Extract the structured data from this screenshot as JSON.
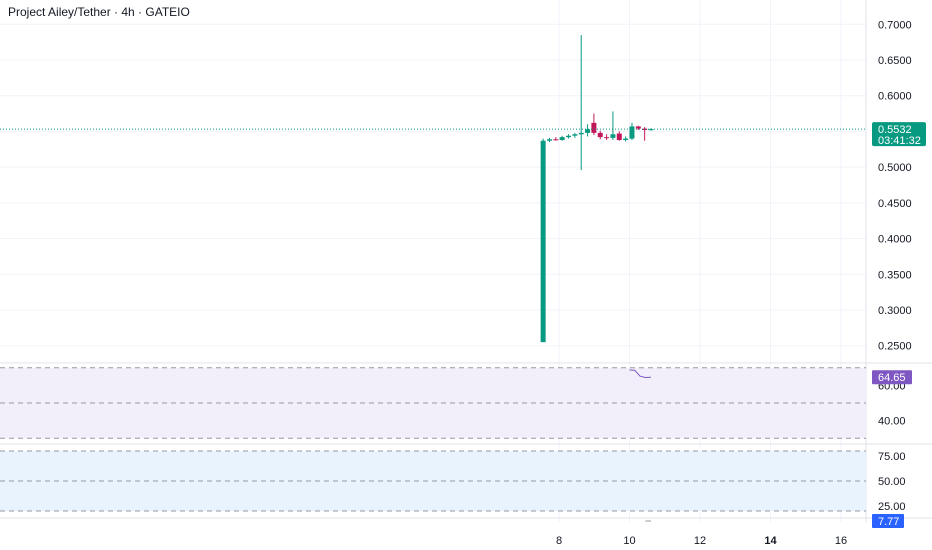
{
  "header": {
    "title": "Project Ailey/Tether · 4h · GATEIO"
  },
  "colors": {
    "up": "#089981",
    "down": "#c2185b",
    "grid": "#f0f3fa",
    "text": "#131722",
    "rsi_band": "#f3effa",
    "rsi_line": "#7e57c2",
    "stoch_band": "#e8f3fd",
    "stoch_tag": "#2962ff"
  },
  "chart_data": [
    {
      "type": "candlestick",
      "title": "Project Ailey/Tether · 4h · GATEIO",
      "ylim": [
        0.23,
        0.72
      ],
      "y_ticks": [
        "0.7000",
        "0.6500",
        "0.6000",
        "0.5500",
        "0.5000",
        "0.4500",
        "0.4000",
        "0.3500",
        "0.3000",
        "0.2500"
      ],
      "x_ticks": [
        {
          "label": "8",
          "bold": false
        },
        {
          "label": "10",
          "bold": false
        },
        {
          "label": "12",
          "bold": false
        },
        {
          "label": "14",
          "bold": true
        },
        {
          "label": "16",
          "bold": false
        }
      ],
      "last_price": {
        "value": "0.5532",
        "countdown": "03:41:32"
      },
      "candles": [
        {
          "t": 7.55,
          "o": 0.255,
          "h": 0.54,
          "l": 0.255,
          "c": 0.537
        },
        {
          "t": 7.73,
          "o": 0.537,
          "h": 0.541,
          "l": 0.535,
          "c": 0.539
        },
        {
          "t": 7.91,
          "o": 0.539,
          "h": 0.542,
          "l": 0.537,
          "c": 0.538
        },
        {
          "t": 8.09,
          "o": 0.538,
          "h": 0.544,
          "l": 0.537,
          "c": 0.542
        },
        {
          "t": 8.27,
          "o": 0.542,
          "h": 0.546,
          "l": 0.54,
          "c": 0.544
        },
        {
          "t": 8.45,
          "o": 0.544,
          "h": 0.548,
          "l": 0.541,
          "c": 0.546
        },
        {
          "t": 8.63,
          "o": 0.546,
          "h": 0.685,
          "l": 0.496,
          "c": 0.548
        },
        {
          "t": 8.81,
          "o": 0.548,
          "h": 0.56,
          "l": 0.543,
          "c": 0.553
        },
        {
          "t": 8.99,
          "o": 0.562,
          "h": 0.575,
          "l": 0.545,
          "c": 0.548
        },
        {
          "t": 9.17,
          "o": 0.548,
          "h": 0.551,
          "l": 0.539,
          "c": 0.542
        },
        {
          "t": 9.35,
          "o": 0.542,
          "h": 0.546,
          "l": 0.538,
          "c": 0.541
        },
        {
          "t": 9.53,
          "o": 0.541,
          "h": 0.578,
          "l": 0.538,
          "c": 0.546
        },
        {
          "t": 9.71,
          "o": 0.547,
          "h": 0.55,
          "l": 0.537,
          "c": 0.538
        },
        {
          "t": 9.89,
          "o": 0.538,
          "h": 0.543,
          "l": 0.536,
          "c": 0.54
        },
        {
          "t": 10.07,
          "o": 0.54,
          "h": 0.562,
          "l": 0.538,
          "c": 0.557
        },
        {
          "t": 10.25,
          "o": 0.557,
          "h": 0.558,
          "l": 0.552,
          "c": 0.554
        },
        {
          "t": 10.43,
          "o": 0.554,
          "h": 0.556,
          "l": 0.537,
          "c": 0.552
        },
        {
          "t": 10.61,
          "o": 0.552,
          "h": 0.5545,
          "l": 0.551,
          "c": 0.5532
        }
      ]
    },
    {
      "type": "line",
      "name": "RSI",
      "ylim": [
        29,
        71
      ],
      "bands": [
        70,
        50,
        30
      ],
      "y_ticks": [
        "60.00",
        "40.00"
      ],
      "current": "64.65",
      "x": [
        10.0,
        10.15,
        10.3,
        10.45,
        10.61
      ],
      "y": [
        68.8,
        68.5,
        65.2,
        64.5,
        64.65
      ]
    },
    {
      "type": "line",
      "name": "Stochastic",
      "ylim": [
        17,
        83
      ],
      "bands": [
        80,
        50,
        20
      ],
      "y_ticks": [
        "75.00",
        "50.00",
        "25.00"
      ],
      "current": "7.77",
      "x": [
        10.45,
        10.61
      ],
      "y": [
        7.77,
        7.77
      ]
    }
  ]
}
